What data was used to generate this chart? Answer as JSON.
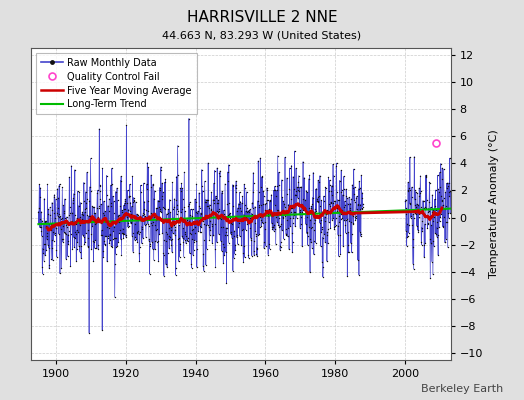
{
  "title": "HARRISVILLE 2 NNE",
  "subtitle": "44.663 N, 83.293 W (United States)",
  "ylabel": "Temperature Anomaly (°C)",
  "watermark": "Berkeley Earth",
  "ylim": [
    -10.5,
    12.5
  ],
  "yticks": [
    -10,
    -8,
    -6,
    -4,
    -2,
    0,
    2,
    4,
    6,
    8,
    10,
    12
  ],
  "xlim": [
    1893,
    2013
  ],
  "xticks": [
    1900,
    1920,
    1940,
    1960,
    1980,
    2000
  ],
  "year_start": 1895,
  "year_end": 2012,
  "seed": 42,
  "background_color": "#e0e0e0",
  "plot_bg_color": "#ffffff",
  "raw_color": "#4444cc",
  "dot_color": "#111111",
  "ma_color": "#cc0000",
  "trend_color": "#00bb00",
  "qc_color": "#ff44cc",
  "grid_color": "#cccccc",
  "title_fontsize": 11,
  "subtitle_fontsize": 8,
  "legend_fontsize": 7,
  "tick_fontsize": 8,
  "ylabel_fontsize": 8,
  "watermark_fontsize": 8
}
